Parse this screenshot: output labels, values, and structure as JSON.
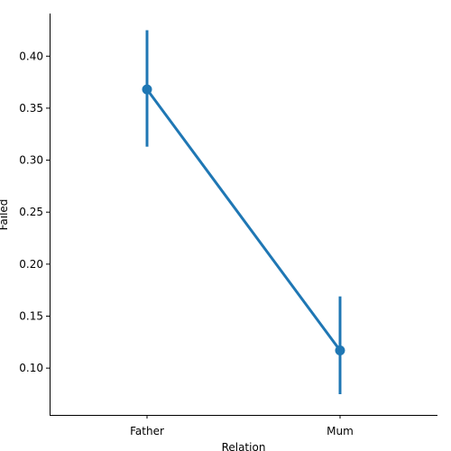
{
  "chart_data": {
    "type": "line",
    "categories": [
      "Father",
      "Mum"
    ],
    "series": [
      {
        "values": [
          0.368,
          0.117
        ],
        "ci_low": [
          0.313,
          0.075
        ],
        "ci_high": [
          0.425,
          0.169
        ]
      }
    ],
    "xlabel": "Relation",
    "ylabel": "Failed",
    "ylim": [
      0.055,
      0.441
    ],
    "yticks": [
      0.1,
      0.15,
      0.2,
      0.25,
      0.3,
      0.35,
      0.4
    ],
    "ytick_labels": [
      "0.10",
      "0.15",
      "0.20",
      "0.25",
      "0.30",
      "0.35",
      "0.40"
    ],
    "grid": false,
    "color": "#1f77b4"
  }
}
